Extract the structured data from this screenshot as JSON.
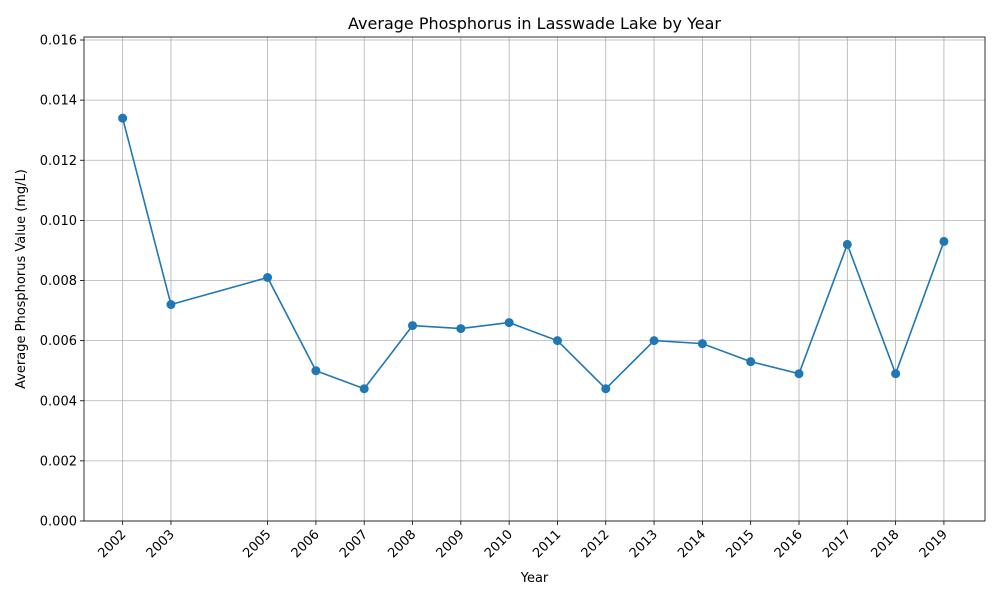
{
  "chart_data": {
    "type": "line",
    "title": "Average Phosphorus in Lasswade Lake by Year",
    "xlabel": "Year",
    "ylabel": "Average Phosphorus Value (mg/L)",
    "x": [
      2002,
      2003,
      2005,
      2006,
      2007,
      2008,
      2009,
      2010,
      2011,
      2012,
      2013,
      2014,
      2015,
      2016,
      2017,
      2018,
      2019
    ],
    "x_tick_labels": [
      "2002",
      "2003",
      "2005",
      "2006",
      "2007",
      "2008",
      "2009",
      "2010",
      "2011",
      "2012",
      "2013",
      "2014",
      "2015",
      "2016",
      "2017",
      "2018",
      "2019"
    ],
    "series": [
      {
        "values": [
          0.0134,
          0.0072,
          0.0081,
          0.005,
          0.0044,
          0.0065,
          0.0064,
          0.0066,
          0.006,
          0.0044,
          0.006,
          0.0059,
          0.0053,
          0.0049,
          0.0092,
          0.0049,
          0.0093
        ],
        "color": "#1f77b4",
        "marker": "circle"
      }
    ],
    "xlim": [
      2001.2,
      2019.85
    ],
    "ylim": [
      0,
      0.0161
    ],
    "y_ticks": [
      0,
      0.002,
      0.004,
      0.006,
      0.008,
      0.01,
      0.012,
      0.014,
      0.016
    ],
    "y_tick_labels": [
      "0.000",
      "0.002",
      "0.004",
      "0.006",
      "0.008",
      "0.010",
      "0.012",
      "0.014",
      "0.016"
    ],
    "grid": true,
    "x_tick_rotation": 45
  }
}
